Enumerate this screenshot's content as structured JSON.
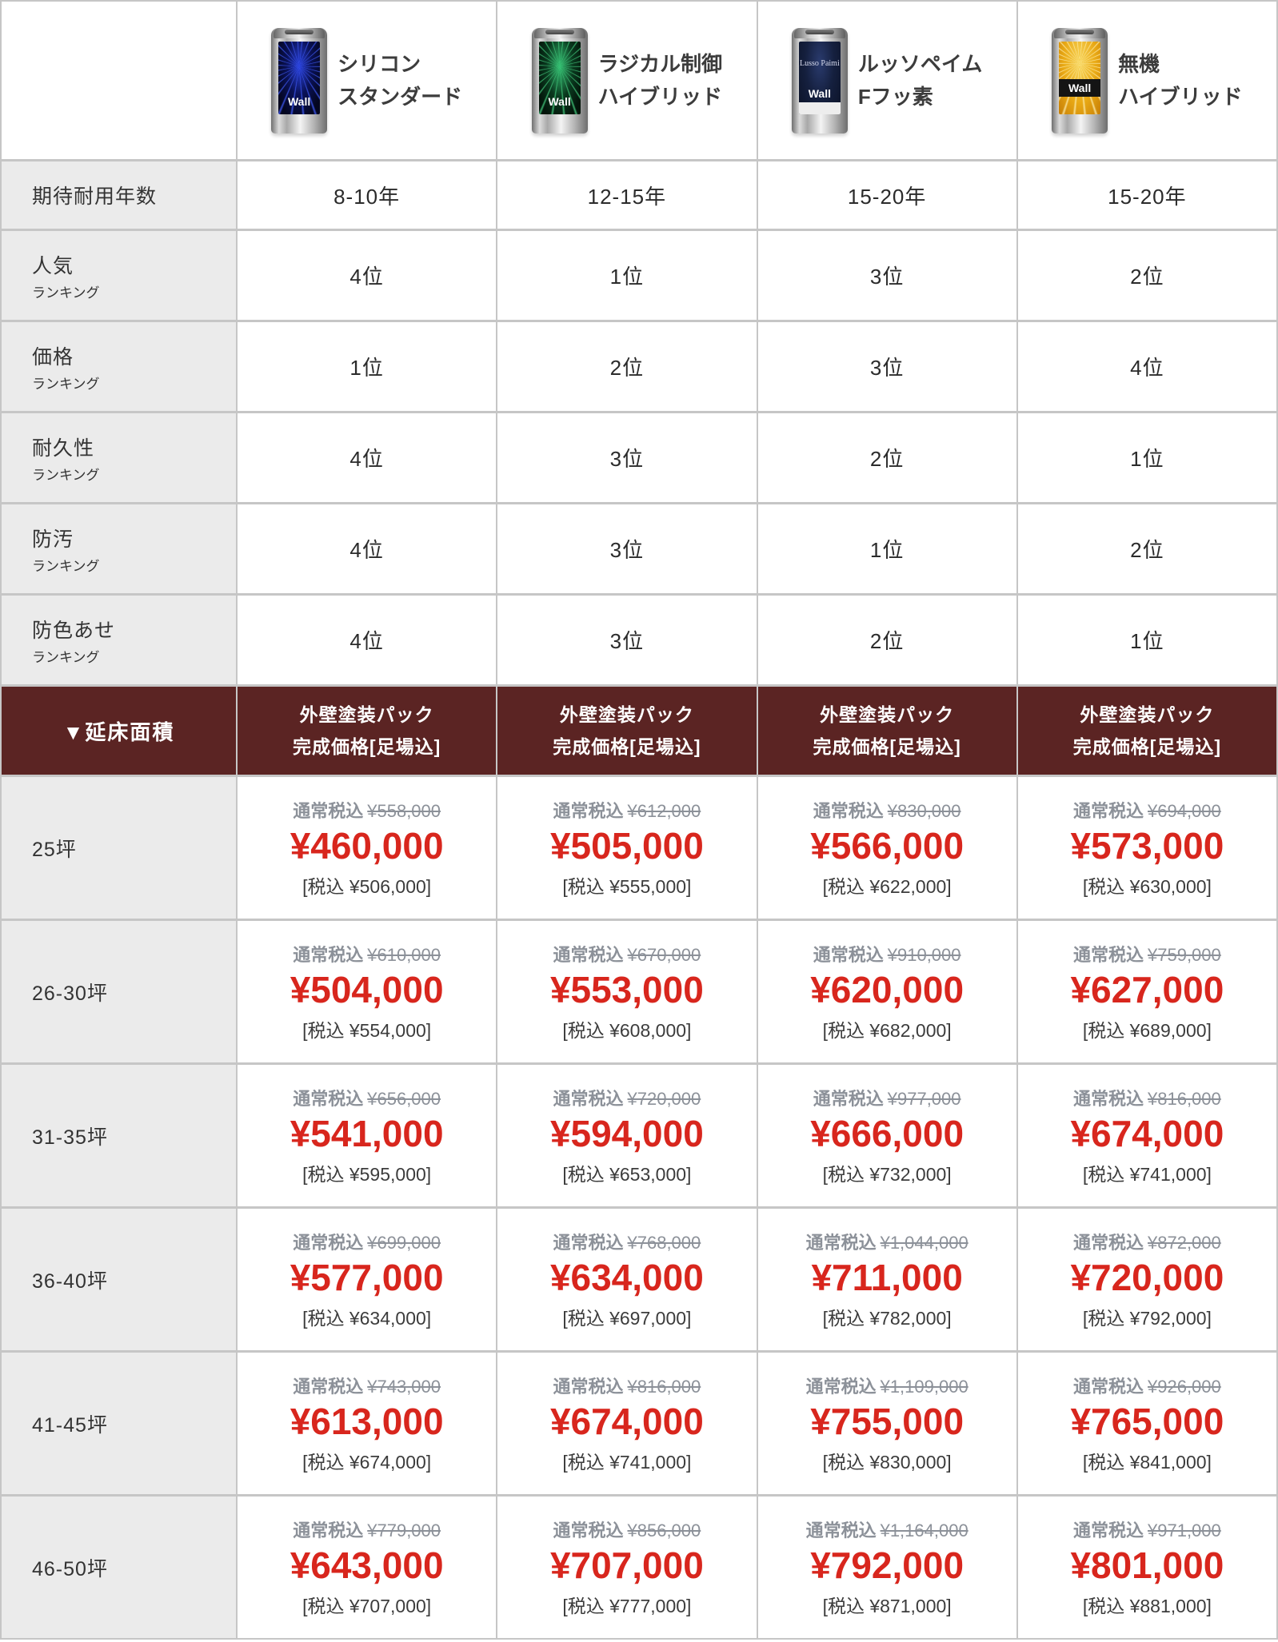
{
  "colors": {
    "price_red": "#d8261d",
    "header_maroon": "#5b2423",
    "label_cell_bg": "#ebebeb",
    "strike_gray": "#8c9199",
    "grid_line": "#c6c6c6",
    "can_blue": "#2b44e0",
    "can_green": "#35c274",
    "can_navy": "#15203f",
    "can_orange": "#e9a915"
  },
  "products": [
    {
      "name_line1": "シリコン",
      "name_line2": "スタンダード",
      "can_style": "silicon",
      "can_label": "Wall"
    },
    {
      "name_line1": "ラジカル制御",
      "name_line2": "ハイブリッド",
      "can_style": "radical",
      "can_label": "Wall"
    },
    {
      "name_line1": "ルッソペイム",
      "name_line2": "Fフッ素",
      "can_style": "lusso",
      "can_label": "Wall",
      "can_brand": "Lusso Paimi"
    },
    {
      "name_line1": "無機",
      "name_line2": "ハイブリッド",
      "can_style": "muki",
      "can_label": "Wall"
    }
  ],
  "spec_rows": [
    {
      "label": "期待耐用年数",
      "sub": "",
      "values": [
        "8-10年",
        "12-15年",
        "15-20年",
        "15-20年"
      ]
    },
    {
      "label": "人気",
      "sub": "ランキング",
      "values": [
        "4位",
        "1位",
        "3位",
        "2位"
      ]
    },
    {
      "label": "価格",
      "sub": "ランキング",
      "values": [
        "1位",
        "2位",
        "3位",
        "4位"
      ]
    },
    {
      "label": "耐久性",
      "sub": "ランキング",
      "values": [
        "4位",
        "3位",
        "2位",
        "1位"
      ]
    },
    {
      "label": "防汚",
      "sub": "ランキング",
      "values": [
        "4位",
        "3位",
        "1位",
        "2位"
      ]
    },
    {
      "label": "防色あせ",
      "sub": "ランキング",
      "values": [
        "4位",
        "3位",
        "2位",
        "1位"
      ]
    }
  ],
  "price_header": {
    "label": "▼延床面積",
    "column_title_line1": "外壁塗装パック",
    "column_title_line2": "完成価格[足場込]"
  },
  "price_rows": [
    {
      "label": "25坪",
      "cells": [
        {
          "normal_label": "通常税込",
          "normal_price": "¥558,000",
          "price": "¥460,000",
          "tax": "[税込 ¥506,000]"
        },
        {
          "normal_label": "通常税込",
          "normal_price": "¥612,000",
          "price": "¥505,000",
          "tax": "[税込 ¥555,000]"
        },
        {
          "normal_label": "通常税込",
          "normal_price": "¥830,000",
          "price": "¥566,000",
          "tax": "[税込 ¥622,000]"
        },
        {
          "normal_label": "通常税込",
          "normal_price": "¥694,000",
          "price": "¥573,000",
          "tax": "[税込 ¥630,000]"
        }
      ]
    },
    {
      "label": "26-30坪",
      "cells": [
        {
          "normal_label": "通常税込",
          "normal_price": "¥610,000",
          "price": "¥504,000",
          "tax": "[税込 ¥554,000]"
        },
        {
          "normal_label": "通常税込",
          "normal_price": "¥670,000",
          "price": "¥553,000",
          "tax": "[税込 ¥608,000]"
        },
        {
          "normal_label": "通常税込",
          "normal_price": "¥910,000",
          "price": "¥620,000",
          "tax": "[税込 ¥682,000]"
        },
        {
          "normal_label": "通常税込",
          "normal_price": "¥759,000",
          "price": "¥627,000",
          "tax": "[税込 ¥689,000]"
        }
      ]
    },
    {
      "label": "31-35坪",
      "cells": [
        {
          "normal_label": "通常税込",
          "normal_price": "¥656,000",
          "price": "¥541,000",
          "tax": "[税込 ¥595,000]"
        },
        {
          "normal_label": "通常税込",
          "normal_price": "¥720,000",
          "price": "¥594,000",
          "tax": "[税込 ¥653,000]"
        },
        {
          "normal_label": "通常税込",
          "normal_price": "¥977,000",
          "price": "¥666,000",
          "tax": "[税込 ¥732,000]"
        },
        {
          "normal_label": "通常税込",
          "normal_price": "¥816,000",
          "price": "¥674,000",
          "tax": "[税込 ¥741,000]"
        }
      ]
    },
    {
      "label": "36-40坪",
      "cells": [
        {
          "normal_label": "通常税込",
          "normal_price": "¥699,000",
          "price": "¥577,000",
          "tax": "[税込 ¥634,000]"
        },
        {
          "normal_label": "通常税込",
          "normal_price": "¥768,000",
          "price": "¥634,000",
          "tax": "[税込 ¥697,000]"
        },
        {
          "normal_label": "通常税込",
          "normal_price": "¥1,044,000",
          "price": "¥711,000",
          "tax": "[税込 ¥782,000]"
        },
        {
          "normal_label": "通常税込",
          "normal_price": "¥872,000",
          "price": "¥720,000",
          "tax": "[税込 ¥792,000]"
        }
      ]
    },
    {
      "label": "41-45坪",
      "cells": [
        {
          "normal_label": "通常税込",
          "normal_price": "¥743,000",
          "price": "¥613,000",
          "tax": "[税込 ¥674,000]"
        },
        {
          "normal_label": "通常税込",
          "normal_price": "¥816,000",
          "price": "¥674,000",
          "tax": "[税込 ¥741,000]"
        },
        {
          "normal_label": "通常税込",
          "normal_price": "¥1,109,000",
          "price": "¥755,000",
          "tax": "[税込 ¥830,000]"
        },
        {
          "normal_label": "通常税込",
          "normal_price": "¥926,000",
          "price": "¥765,000",
          "tax": "[税込 ¥841,000]"
        }
      ]
    },
    {
      "label": "46-50坪",
      "cells": [
        {
          "normal_label": "通常税込",
          "normal_price": "¥779,000",
          "price": "¥643,000",
          "tax": "[税込 ¥707,000]"
        },
        {
          "normal_label": "通常税込",
          "normal_price": "¥856,000",
          "price": "¥707,000",
          "tax": "[税込 ¥777,000]"
        },
        {
          "normal_label": "通常税込",
          "normal_price": "¥1,164,000",
          "price": "¥792,000",
          "tax": "[税込 ¥871,000]"
        },
        {
          "normal_label": "通常税込",
          "normal_price": "¥971,000",
          "price": "¥801,000",
          "tax": "[税込 ¥881,000]"
        }
      ]
    }
  ]
}
